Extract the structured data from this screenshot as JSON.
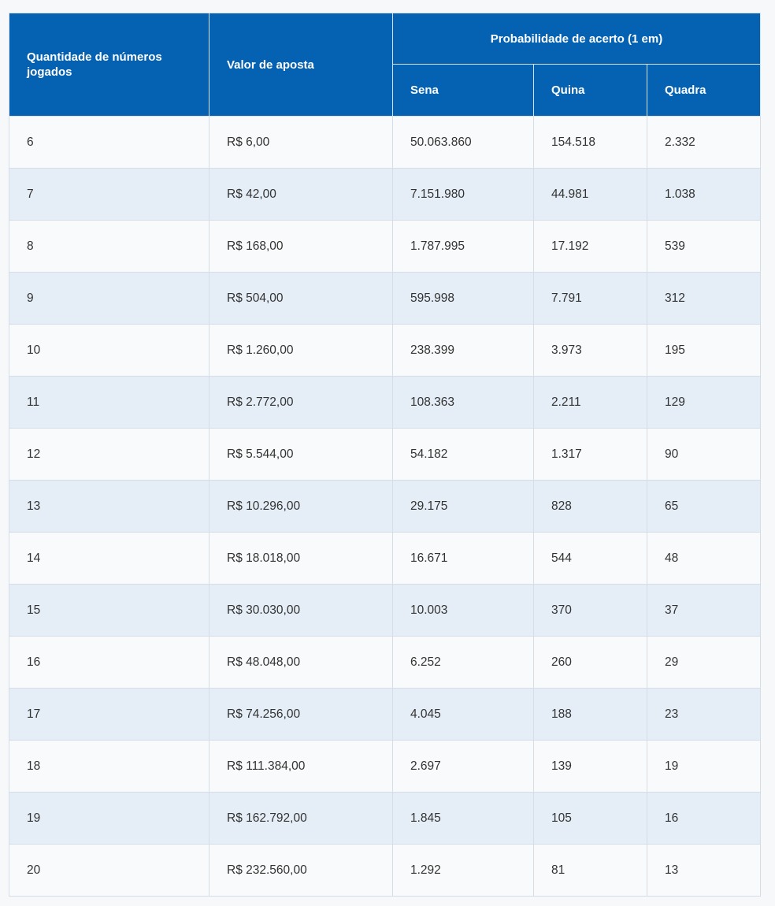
{
  "table": {
    "header": {
      "quantity": "Quantidade de números jogados",
      "value": "Valor de aposta",
      "probability": "Probabilidade de acerto (1 em)",
      "sub": [
        "Sena",
        "Quina",
        "Quadra"
      ]
    },
    "rows": [
      [
        "6",
        "R$ 6,00",
        "50.063.860",
        "154.518",
        "2.332"
      ],
      [
        "7",
        "R$ 42,00",
        "7.151.980",
        "44.981",
        "1.038"
      ],
      [
        "8",
        "R$ 168,00",
        "1.787.995",
        "17.192",
        "539"
      ],
      [
        "9",
        "R$ 504,00",
        "595.998",
        "7.791",
        "312"
      ],
      [
        "10",
        "R$ 1.260,00",
        "238.399",
        "3.973",
        "195"
      ],
      [
        "11",
        "R$ 2.772,00",
        "108.363",
        "2.211",
        "129"
      ],
      [
        "12",
        "R$ 5.544,00",
        "54.182",
        "1.317",
        "90"
      ],
      [
        "13",
        "R$ 10.296,00",
        "29.175",
        "828",
        "65"
      ],
      [
        "14",
        "R$ 18.018,00",
        "16.671",
        "544",
        "48"
      ],
      [
        "15",
        "R$ 30.030,00",
        "10.003",
        "370",
        "37"
      ],
      [
        "16",
        "R$ 48.048,00",
        "6.252",
        "260",
        "29"
      ],
      [
        "17",
        "R$ 74.256,00",
        "4.045",
        "188",
        "23"
      ],
      [
        "18",
        "R$ 111.384,00",
        "2.697",
        "139",
        "19"
      ],
      [
        "19",
        "R$ 162.792,00",
        "1.845",
        "105",
        "16"
      ],
      [
        "20",
        "R$ 232.560,00",
        "1.292",
        "81",
        "13"
      ]
    ]
  }
}
